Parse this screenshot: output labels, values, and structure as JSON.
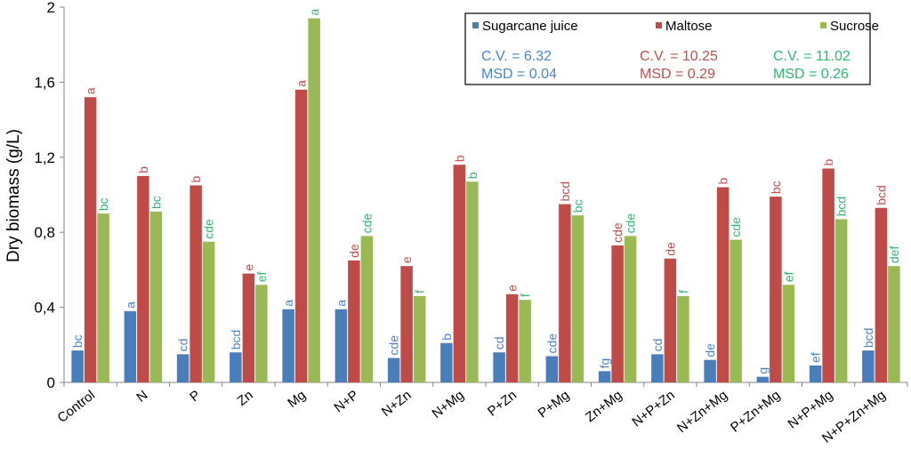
{
  "chart_data": {
    "type": "bar",
    "ylabel": "Dry biomass (g/L)",
    "xlabel": "",
    "ylim": [
      0,
      2
    ],
    "yticks": [
      "0",
      "0,4",
      "0,8",
      "1,2",
      "1,6",
      "2"
    ],
    "ytick_values": [
      0,
      0.4,
      0.8,
      1.2,
      1.6,
      2.0
    ],
    "grid": false,
    "legend_position": "top-right",
    "categories": [
      "Control",
      "N",
      "P",
      "Zn",
      "Mg",
      "N+P",
      "N+Zn",
      "N+Mg",
      "P+Zn",
      "P+Mg",
      "Zn+Mg",
      "N+P+Zn",
      "N+Zn+Mg",
      "P+Zn+Mg",
      "N+P+Mg",
      "N+P+Zn+Mg"
    ],
    "series": [
      {
        "name": "Sugarcane juice",
        "color": "#4a7ebb",
        "values": [
          0.17,
          0.38,
          0.15,
          0.16,
          0.39,
          0.39,
          0.13,
          0.21,
          0.16,
          0.14,
          0.06,
          0.15,
          0.12,
          0.03,
          0.09,
          0.17
        ],
        "letters": [
          "bc",
          "a",
          "cd",
          "bcd",
          "a",
          "a",
          "cde",
          "b",
          "cd",
          "cde",
          "fg",
          "cd",
          "de",
          "g",
          "ef",
          "bcd"
        ],
        "stats": {
          "cv": "C.V. = 6.32",
          "msd": "MSD = 0.04"
        }
      },
      {
        "name": "Maltose",
        "color": "#be4b48",
        "values": [
          1.52,
          1.1,
          1.05,
          0.58,
          1.56,
          0.65,
          0.62,
          1.16,
          0.47,
          0.95,
          0.73,
          0.66,
          1.04,
          0.99,
          1.14,
          0.93
        ],
        "letters": [
          "a",
          "b",
          "b",
          "e",
          "a",
          "de",
          "e",
          "b",
          "e",
          "bcd",
          "cde",
          "de",
          "b",
          "bc",
          "b",
          "bcd"
        ],
        "stats": {
          "cv": "C.V. = 10.25",
          "msd": "MSD = 0.29"
        }
      },
      {
        "name": "Sucrose",
        "color": "#98b954",
        "values": [
          0.9,
          0.91,
          0.75,
          0.52,
          1.94,
          0.78,
          0.46,
          1.07,
          0.44,
          0.89,
          0.78,
          0.46,
          0.76,
          0.52,
          0.87,
          0.62
        ],
        "letters": [
          "bc",
          "bc",
          "cde",
          "ef",
          "a",
          "cde",
          "f",
          "b",
          "f",
          "bc",
          "cde",
          "f",
          "cde",
          "ef",
          "bcd",
          "def"
        ],
        "stats": {
          "cv": "C.V. = 11.02",
          "msd": "MSD = 0.26"
        }
      }
    ]
  },
  "label_colors": {
    "Sugarcane juice": "#4a86c6",
    "Maltose": "#c0504d",
    "Sucrose": "#2fb872"
  }
}
